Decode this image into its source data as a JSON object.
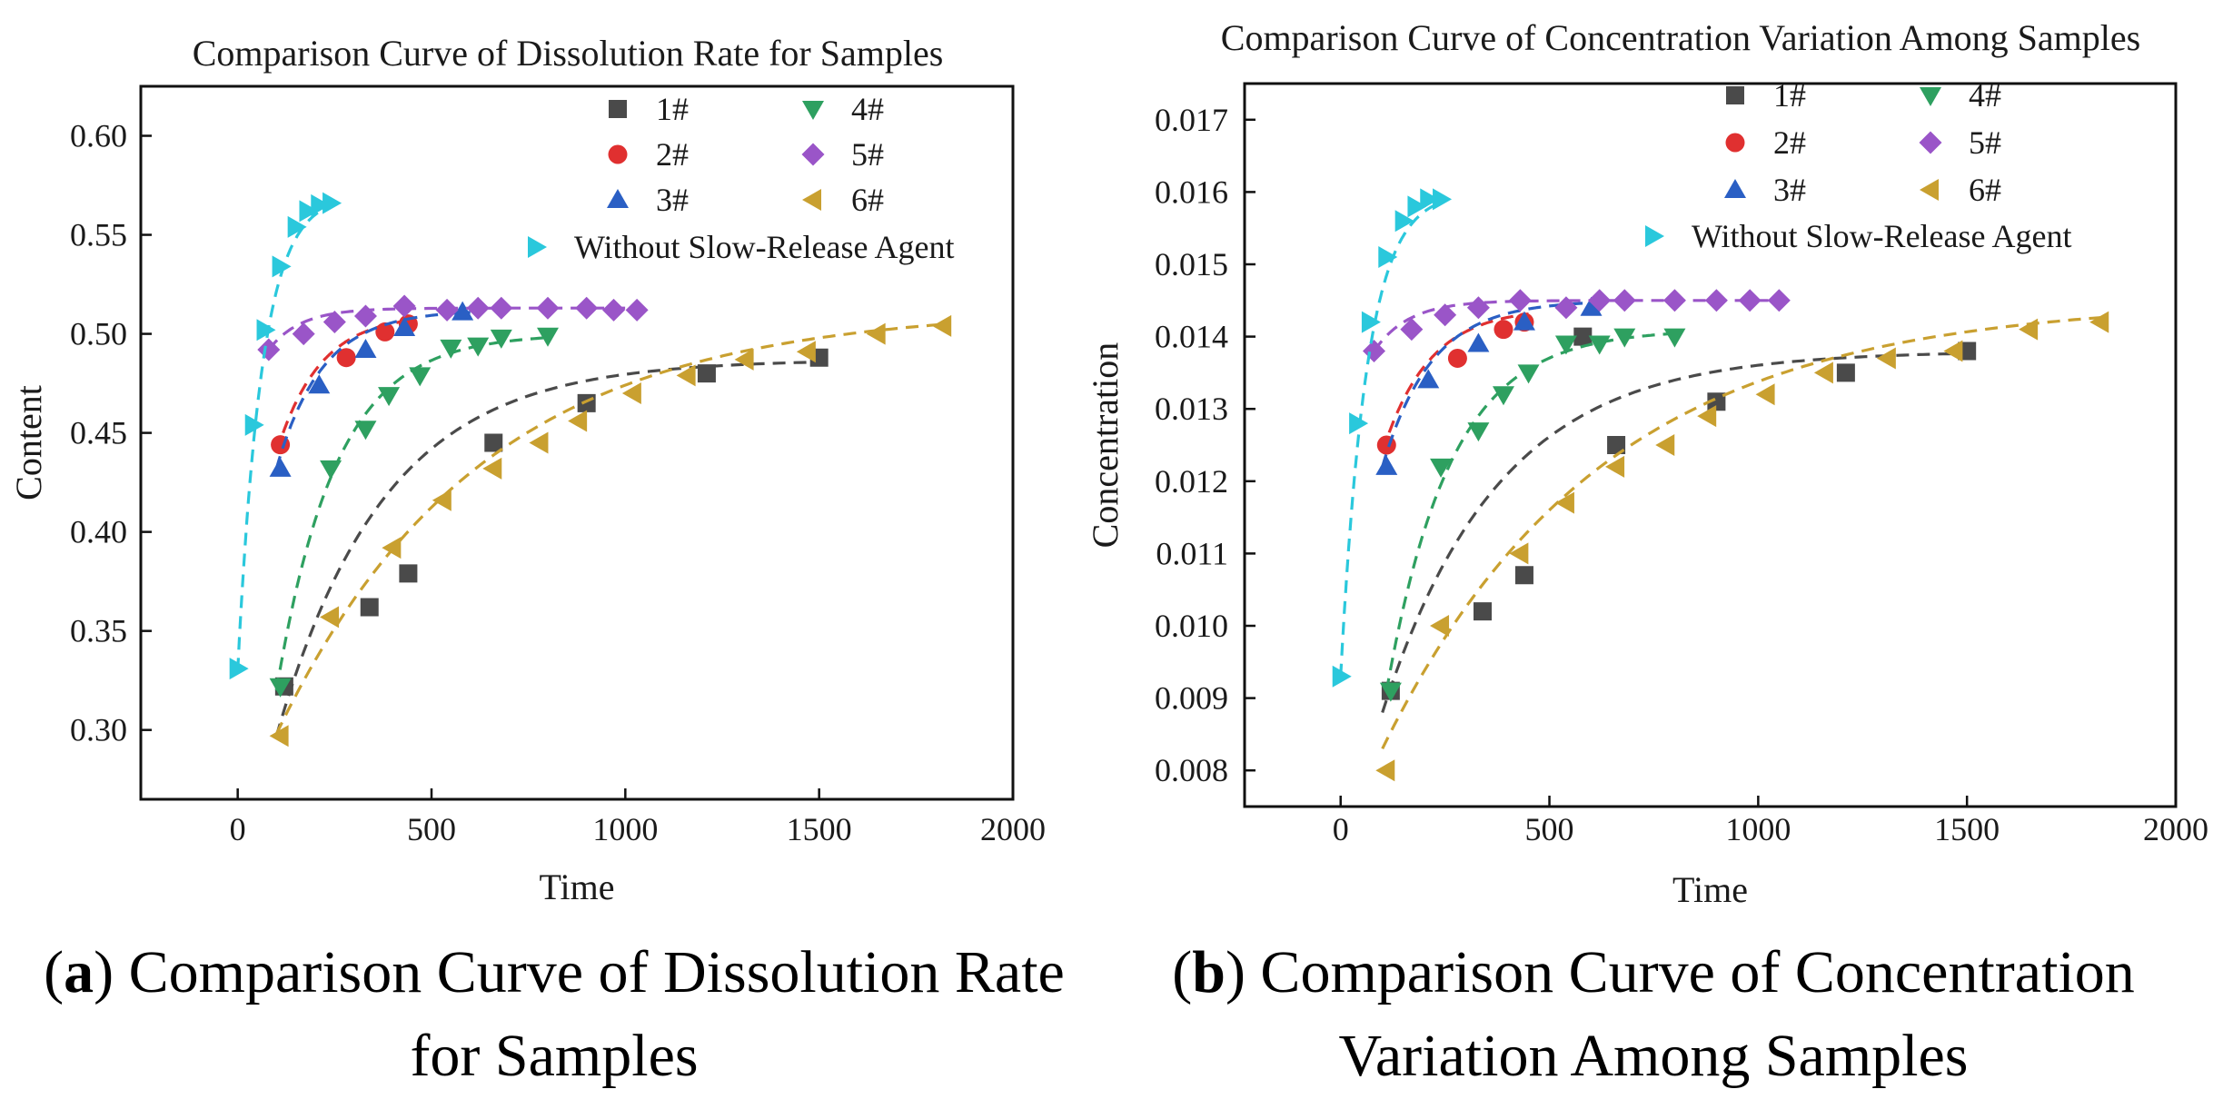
{
  "chart_data": [
    {
      "type": "scatter",
      "title": "Comparison Curve of Dissolution Rate for Samples",
      "xlabel": "Time",
      "ylabel": "Content",
      "xlim": [
        -250,
        2000
      ],
      "ylim": [
        0.265,
        0.625
      ],
      "xticks": [
        0,
        500,
        1000,
        1500,
        2000
      ],
      "yticks": [
        0.3,
        0.35,
        0.4,
        0.45,
        0.5,
        0.55,
        0.6
      ],
      "ytick_labels": [
        "0.30",
        "0.35",
        "0.40",
        "0.45",
        "0.50",
        "0.55",
        "0.60"
      ],
      "legend_position": "top-right",
      "caption": {
        "letter": "a",
        "text": "Comparison Curve of Dissolution Rate for Samples"
      },
      "series": [
        {
          "name": "1#",
          "color": "#4a4a4a",
          "marker": "square",
          "x": [
            120,
            340,
            440,
            660,
            900,
            1210,
            1500
          ],
          "y": [
            0.322,
            0.362,
            0.379,
            0.445,
            0.465,
            0.48,
            0.488
          ],
          "fit": {
            "a": 0.487,
            "b": 0.19,
            "k": 0.0036,
            "x0": 100,
            "xmax": 1500
          }
        },
        {
          "name": "2#",
          "color": "#e03030",
          "marker": "circle",
          "x": [
            110,
            280,
            380,
            440
          ],
          "y": [
            0.444,
            0.488,
            0.501,
            0.505
          ],
          "fit": {
            "a": 0.51,
            "b": 0.07,
            "k": 0.009,
            "x0": 100,
            "xmax": 450
          }
        },
        {
          "name": "3#",
          "color": "#2a5fc4",
          "marker": "triangle-up",
          "x": [
            110,
            210,
            330,
            430,
            580
          ],
          "y": [
            0.432,
            0.474,
            0.492,
            0.503,
            0.511
          ],
          "fit": {
            "a": 0.512,
            "b": 0.08,
            "k": 0.0085,
            "x0": 100,
            "xmax": 600
          }
        },
        {
          "name": "4#",
          "color": "#2ea060",
          "marker": "triangle-down",
          "x": [
            110,
            240,
            330,
            390,
            470,
            550,
            620,
            680,
            800
          ],
          "y": [
            0.322,
            0.432,
            0.452,
            0.469,
            0.479,
            0.493,
            0.494,
            0.498,
            0.499
          ],
          "fit": {
            "a": 0.5,
            "b": 0.18,
            "k": 0.0065,
            "x0": 100,
            "xmax": 800
          }
        },
        {
          "name": "5#",
          "color": "#9a55c8",
          "marker": "diamond",
          "x": [
            80,
            170,
            250,
            330,
            430,
            540,
            620,
            680,
            800,
            900,
            970,
            1030
          ],
          "y": [
            0.492,
            0.5,
            0.506,
            0.509,
            0.514,
            0.512,
            0.513,
            0.513,
            0.513,
            0.513,
            0.512,
            0.512
          ],
          "fit": {
            "a": 0.513,
            "b": 0.021,
            "k": 0.012,
            "x0": 80,
            "xmax": 1050
          }
        },
        {
          "name": "6#",
          "color": "#c9a030",
          "marker": "triangle-left",
          "x": [
            110,
            240,
            400,
            530,
            660,
            780,
            880,
            1020,
            1160,
            1310,
            1470,
            1650,
            1820
          ],
          "y": [
            0.297,
            0.357,
            0.392,
            0.416,
            0.432,
            0.445,
            0.456,
            0.47,
            0.479,
            0.487,
            0.491,
            0.5,
            0.504
          ],
          "fit": {
            "a": 0.513,
            "b": 0.215,
            "k": 0.0019,
            "x0": 100,
            "xmax": 1830
          }
        },
        {
          "name": "Without Slow-Release Agent",
          "color": "#2ac8dc",
          "marker": "triangle-right",
          "x": [
            0,
            40,
            70,
            110,
            150,
            180,
            210,
            240
          ],
          "y": [
            0.331,
            0.454,
            0.502,
            0.534,
            0.554,
            0.562,
            0.565,
            0.566
          ],
          "fit": {
            "a": 0.57,
            "b": 0.24,
            "k": 0.016,
            "x0": 0,
            "xmax": 250
          }
        }
      ]
    },
    {
      "type": "scatter",
      "title": "Comparison Curve of Concentration Variation Among Samples",
      "xlabel": "Time",
      "ylabel": "Concentration",
      "xlim": [
        -230,
        2000
      ],
      "ylim": [
        0.0075,
        0.0175
      ],
      "xticks": [
        0,
        500,
        1000,
        1500,
        2000
      ],
      "yticks": [
        0.008,
        0.009,
        0.01,
        0.011,
        0.012,
        0.013,
        0.014,
        0.015,
        0.016,
        0.017
      ],
      "ytick_labels": [
        "0.008",
        "0.009",
        "0.010",
        "0.011",
        "0.012",
        "0.013",
        "0.014",
        "0.015",
        "0.016",
        "0.017"
      ],
      "legend_position": "top-right",
      "caption": {
        "letter": "b",
        "text": "Comparison Curve of Concentration Variation Among Samples"
      },
      "series": [
        {
          "name": "1#",
          "color": "#4a4a4a",
          "marker": "square",
          "x": [
            120,
            340,
            440,
            580,
            660,
            900,
            1210,
            1500
          ],
          "y": [
            0.0091,
            0.0102,
            0.0107,
            0.014,
            0.0125,
            0.0131,
            0.0135,
            0.0138
          ],
          "fit": {
            "a": 0.0138,
            "b": 0.005,
            "k": 0.0036,
            "x0": 100,
            "xmax": 1500
          }
        },
        {
          "name": "2#",
          "color": "#e03030",
          "marker": "circle",
          "x": [
            110,
            280,
            390,
            440
          ],
          "y": [
            0.0125,
            0.0137,
            0.0141,
            0.0142
          ],
          "fit": {
            "a": 0.0144,
            "b": 0.002,
            "k": 0.009,
            "x0": 100,
            "xmax": 450
          }
        },
        {
          "name": "3#",
          "color": "#2a5fc4",
          "marker": "triangle-up",
          "x": [
            110,
            210,
            330,
            440,
            600
          ],
          "y": [
            0.0122,
            0.0134,
            0.0139,
            0.0142,
            0.0144
          ],
          "fit": {
            "a": 0.0145,
            "b": 0.0023,
            "k": 0.0085,
            "x0": 100,
            "xmax": 600
          }
        },
        {
          "name": "4#",
          "color": "#2ea060",
          "marker": "triangle-down",
          "x": [
            120,
            240,
            330,
            390,
            450,
            540,
            620,
            680,
            800
          ],
          "y": [
            0.0091,
            0.0122,
            0.0127,
            0.0132,
            0.0135,
            0.0139,
            0.0139,
            0.014,
            0.014
          ],
          "fit": {
            "a": 0.0141,
            "b": 0.005,
            "k": 0.0065,
            "x0": 110,
            "xmax": 800
          }
        },
        {
          "name": "5#",
          "color": "#9a55c8",
          "marker": "diamond",
          "x": [
            80,
            170,
            250,
            330,
            430,
            540,
            620,
            680,
            800,
            900,
            980,
            1050
          ],
          "y": [
            0.0138,
            0.0141,
            0.0143,
            0.0144,
            0.0145,
            0.0144,
            0.0145,
            0.0145,
            0.0145,
            0.0145,
            0.0145,
            0.0145
          ],
          "fit": {
            "a": 0.0145,
            "b": 0.0007,
            "k": 0.012,
            "x0": 80,
            "xmax": 1060
          }
        },
        {
          "name": "6#",
          "color": "#c9a030",
          "marker": "triangle-left",
          "x": [
            110,
            240,
            430,
            540,
            660,
            780,
            880,
            1020,
            1160,
            1310,
            1470,
            1650,
            1820
          ],
          "y": [
            0.008,
            0.01,
            0.011,
            0.0117,
            0.0122,
            0.0125,
            0.0129,
            0.0132,
            0.0135,
            0.0137,
            0.0138,
            0.0141,
            0.0142
          ],
          "fit": {
            "a": 0.0145,
            "b": 0.0062,
            "k": 0.0019,
            "x0": 100,
            "xmax": 1830
          }
        },
        {
          "name": "Without Slow-Release Agent",
          "color": "#2ac8dc",
          "marker": "triangle-right",
          "x": [
            0,
            40,
            70,
            110,
            150,
            180,
            210,
            240
          ],
          "y": [
            0.0093,
            0.0128,
            0.0142,
            0.0151,
            0.0156,
            0.0158,
            0.0159,
            0.0159
          ],
          "fit": {
            "a": 0.016,
            "b": 0.0067,
            "k": 0.016,
            "x0": 0,
            "xmax": 250
          }
        }
      ]
    }
  ]
}
